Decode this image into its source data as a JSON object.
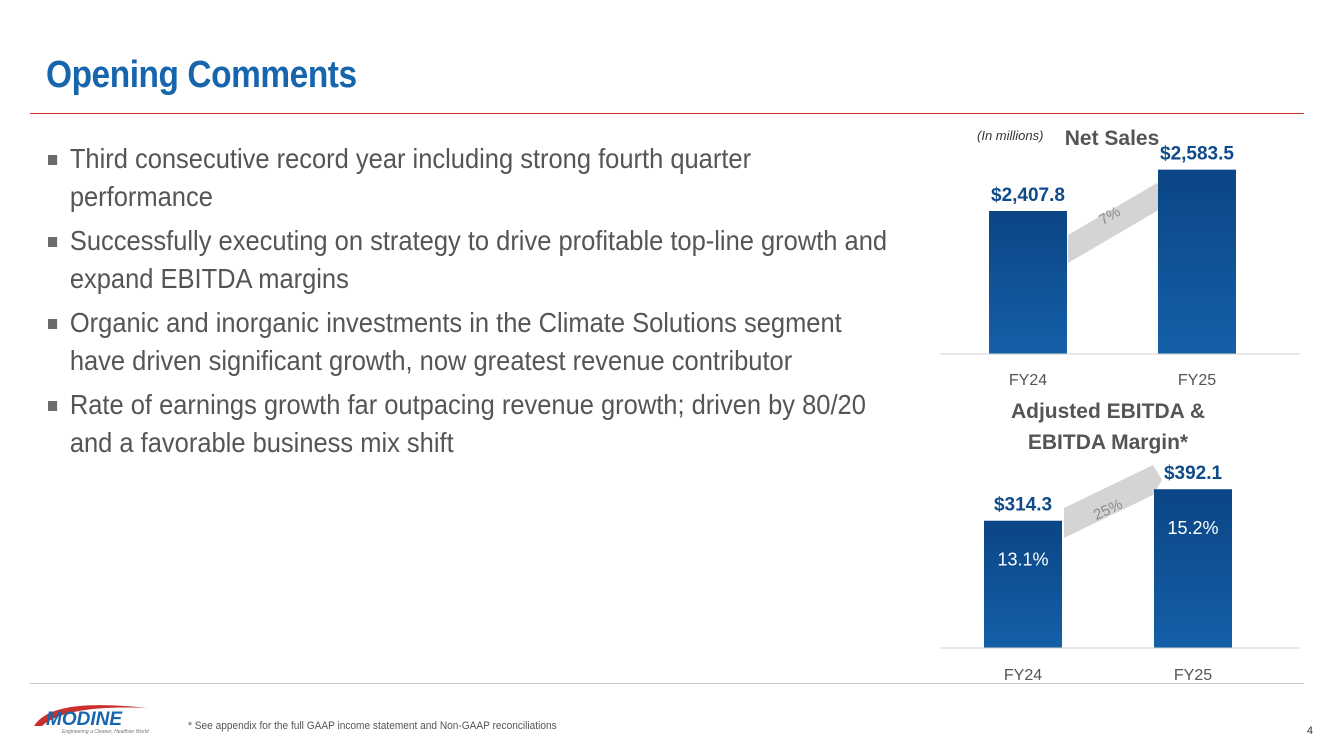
{
  "slide": {
    "title": "Opening Comments",
    "bullets": [
      "Third consecutive record year including strong fourth quarter performance",
      "Successfully executing on strategy to drive profitable top-line growth and expand EBITDA margins",
      "Organic and inorganic investments in the Climate Solutions segment have driven significant growth, now greatest revenue contributor",
      "Rate of earnings growth far outpacing revenue growth; driven by 80/20 and a favorable business mix shift"
    ],
    "footnote": "* See appendix for the full GAAP income statement and Non-GAAP reconciliations",
    "page_number": "4"
  },
  "logo": {
    "name": "MODINE",
    "tagline": "Engineering a Cleaner, Healthier World"
  },
  "colors": {
    "title": "#1665ad",
    "bar": "#0d4f96",
    "label": "#0f4a8a",
    "rule": "#c9302c",
    "arrow": "#d4d4d4"
  },
  "chart_data": [
    {
      "type": "bar",
      "title": "Net Sales",
      "unit_note": "(In millions)",
      "categories": [
        "FY24",
        "FY25"
      ],
      "values": [
        2407.8,
        2583.5
      ],
      "value_labels": [
        "$2,407.8",
        "$2,583.5"
      ],
      "growth_label": "7%",
      "ylim": [
        1800,
        2650
      ]
    },
    {
      "type": "bar",
      "title_lines": [
        "Adjusted EBITDA &",
        "EBITDA Margin*"
      ],
      "categories": [
        "FY24",
        "FY25"
      ],
      "values": [
        314.3,
        392.1
      ],
      "value_labels": [
        "$314.3",
        "$392.1"
      ],
      "inner_labels": [
        "13.1%",
        "15.2%"
      ],
      "growth_label": "25%",
      "ylim": [
        0,
        405
      ]
    }
  ]
}
